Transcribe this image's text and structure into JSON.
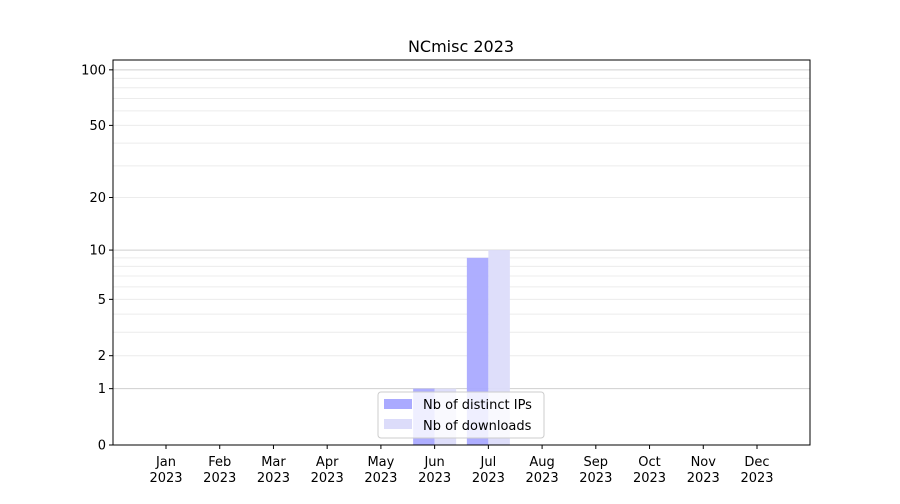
{
  "chart_data": {
    "type": "bar",
    "title": "NCmisc 2023",
    "xlabel": "",
    "ylabel": "",
    "y_scale": "log(1+y)",
    "ylim": [
      0,
      113
    ],
    "y_ticks": [
      0,
      1,
      2,
      5,
      10,
      20,
      50,
      100
    ],
    "grid": "horizontal, major at 1/10/100, minor between",
    "legend_placement": "bottom-center",
    "categories": [
      "Jan\n2023",
      "Feb\n2023",
      "Mar\n2023",
      "Apr\n2023",
      "May\n2023",
      "Jun\n2023",
      "Jul\n2023",
      "Aug\n2023",
      "Sep\n2023",
      "Oct\n2023",
      "Nov\n2023",
      "Dec\n2023"
    ],
    "series": [
      {
        "name": "Nb of distinct IPs",
        "color": "#aaaaff",
        "values": [
          0,
          0,
          0,
          0,
          0,
          1,
          9,
          0,
          0,
          0,
          0,
          0
        ]
      },
      {
        "name": "Nb of downloads",
        "color": "#dcdcfa",
        "values": [
          0,
          0,
          0,
          0,
          0,
          1,
          10,
          0,
          0,
          0,
          0,
          0
        ]
      }
    ]
  }
}
